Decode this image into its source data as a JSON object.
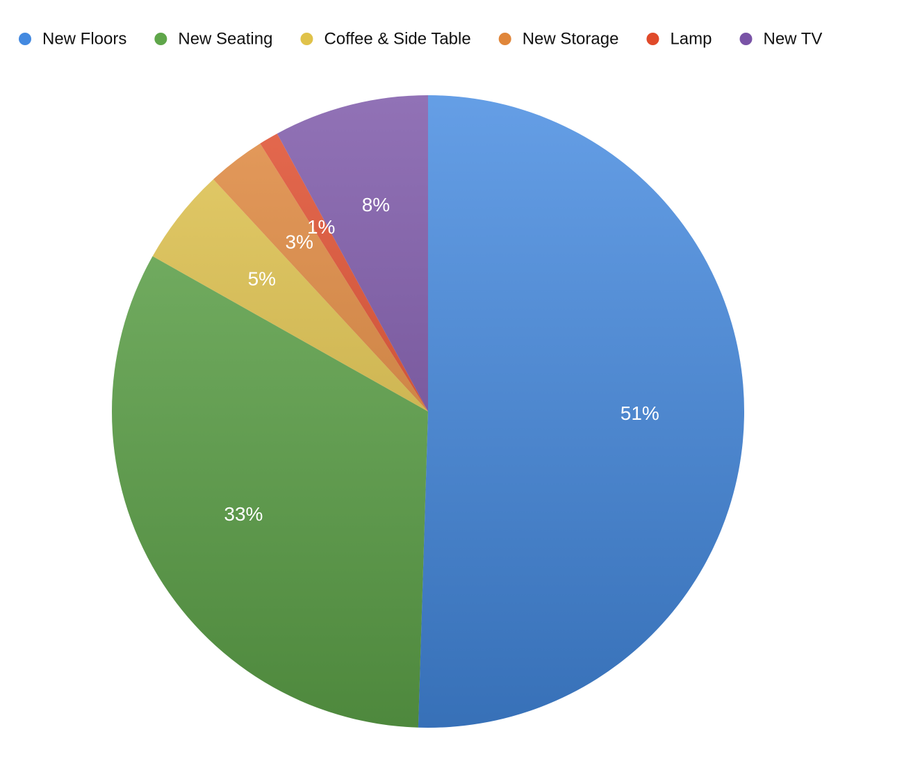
{
  "chart_data": {
    "type": "pie",
    "categories": [
      "New Floors",
      "New Seating",
      "Coffee & Side Table",
      "New Storage",
      "Lamp",
      "New TV"
    ],
    "values": [
      51,
      33,
      5,
      3,
      1,
      8
    ],
    "value_labels": [
      "51%",
      "33%",
      "5%",
      "3%",
      "1%",
      "8%"
    ],
    "colors": [
      "#4389e0",
      "#5fa64a",
      "#e0c24a",
      "#e0863a",
      "#e04a2a",
      "#7953a6"
    ],
    "legend": "top-left"
  }
}
